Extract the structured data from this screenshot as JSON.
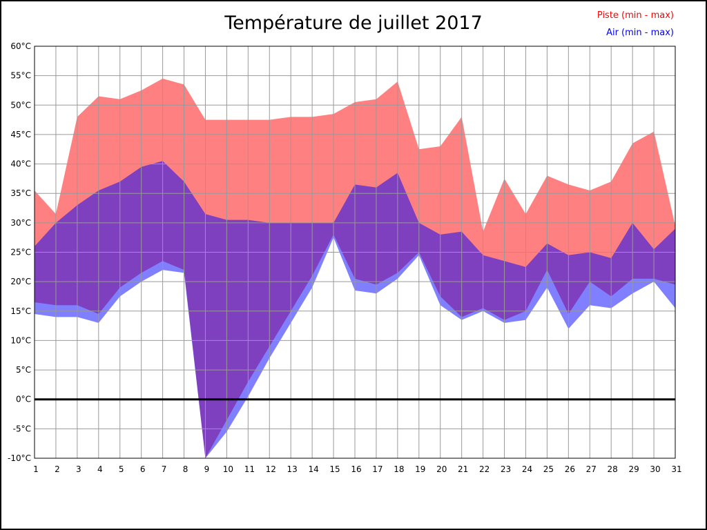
{
  "chart_data": {
    "type": "area",
    "subtype": "min-max-bands",
    "title": "Température de juillet 2017",
    "xlabel": "",
    "ylabel": "",
    "ylim": [
      -10,
      60
    ],
    "grid": true,
    "grid_color": "#999999",
    "axis_color": "#000000",
    "zero_line": true,
    "zero_line_color": "#000000",
    "x": [
      1,
      2,
      3,
      4,
      5,
      6,
      7,
      8,
      9,
      10,
      11,
      12,
      13,
      14,
      15,
      16,
      17,
      18,
      19,
      20,
      21,
      22,
      23,
      24,
      25,
      26,
      27,
      28,
      29,
      30,
      31
    ],
    "x_tick_labels": [
      "1",
      "2",
      "3",
      "4",
      "5",
      "6",
      "7",
      "8",
      "9",
      "10",
      "11",
      "12",
      "13",
      "14",
      "15",
      "16",
      "17",
      "18",
      "19",
      "20",
      "21",
      "22",
      "23",
      "24",
      "25",
      "26",
      "27",
      "28",
      "29",
      "30",
      "31"
    ],
    "y_tick_values": [
      60,
      55,
      50,
      45,
      40,
      35,
      30,
      25,
      20,
      15,
      10,
      5,
      0,
      -5,
      -10
    ],
    "y_tick_labels": [
      "60°C",
      "55°C",
      "50°C",
      "45°C",
      "40°C",
      "35°C",
      "30°C",
      "25°C",
      "20°C",
      "15°C",
      "10°C",
      "5°C",
      "0°C",
      "-5°C",
      "-10°C"
    ],
    "series": [
      {
        "name": "Piste",
        "legend_label": "Piste (min - max)",
        "color": "#FF0000",
        "fill": "#FF8080",
        "max": [
          35.5,
          31.5,
          48,
          51.5,
          51,
          52.5,
          54.5,
          53.5,
          47.5,
          47.5,
          47.5,
          47.5,
          48,
          48,
          48.5,
          50.5,
          51,
          54,
          42.5,
          43,
          48,
          28.5,
          37.5,
          31.5,
          38,
          36.5,
          35.5,
          37,
          43.5,
          45.5,
          29.5
        ],
        "min": [
          16.5,
          16,
          16,
          14.5,
          19,
          21.5,
          23.5,
          22,
          -10,
          -3.5,
          3,
          9,
          15,
          21,
          28,
          20.5,
          19.5,
          21.5,
          25,
          17.5,
          14,
          15.5,
          13.5,
          15,
          22,
          14.5,
          20,
          17.5,
          20.5,
          20.5,
          19.5
        ]
      },
      {
        "name": "Air",
        "legend_label": "Air (min - max)",
        "color": "#0000FF",
        "fill": "rgba(0,0,255,0.5)",
        "max": [
          26,
          30,
          33,
          35.5,
          37,
          39.5,
          40.5,
          37,
          31.5,
          30.5,
          30.5,
          30,
          30,
          30,
          30,
          36.5,
          36,
          38.5,
          30,
          28,
          28.5,
          24.5,
          23.5,
          22.5,
          26.5,
          24.5,
          25,
          24,
          30,
          25.5,
          29
        ],
        "min": [
          14.5,
          14,
          14,
          13,
          17.5,
          20,
          22,
          21.5,
          -10,
          -5.5,
          0.5,
          7,
          13,
          19,
          27.5,
          18.5,
          18,
          20.5,
          24.5,
          16,
          13.5,
          15,
          13,
          13.5,
          19,
          12,
          16,
          15.5,
          18,
          20,
          15.5
        ]
      }
    ]
  }
}
